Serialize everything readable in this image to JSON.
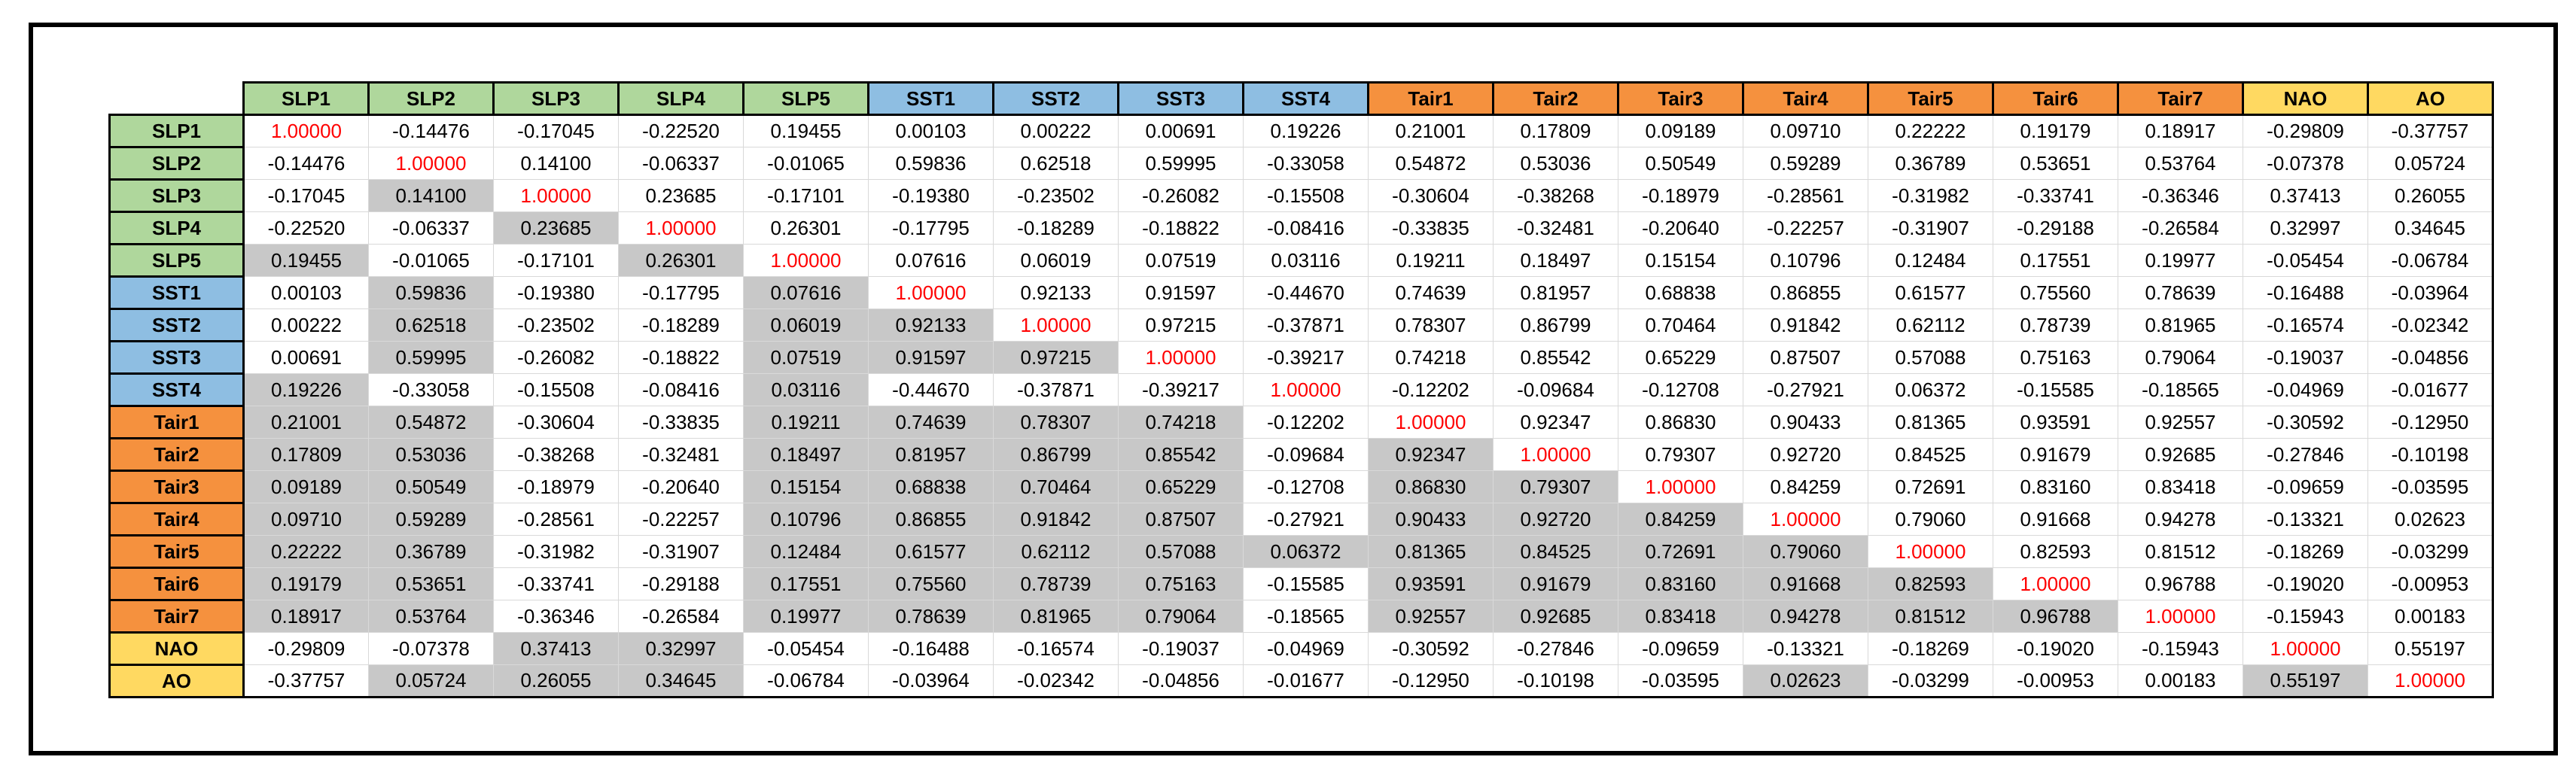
{
  "chart_data": {
    "type": "table",
    "table_kind": "correlation-matrix",
    "variables": [
      "SLP1",
      "SLP2",
      "SLP3",
      "SLP4",
      "SLP5",
      "SST1",
      "SST2",
      "SST3",
      "SST4",
      "Tair1",
      "Tair2",
      "Tair3",
      "Tair4",
      "Tair5",
      "Tair6",
      "Tair7",
      "NAO",
      "AO"
    ],
    "variable_groups": [
      "slp",
      "slp",
      "slp",
      "slp",
      "slp",
      "sst",
      "sst",
      "sst",
      "sst",
      "tair",
      "tair",
      "tair",
      "tair",
      "tair",
      "tair",
      "tair",
      "index",
      "index"
    ],
    "matrix": [
      [
        "1.00000",
        "-0.14476",
        "-0.17045",
        "-0.22520",
        "0.19455",
        "0.00103",
        "0.00222",
        "0.00691",
        "0.19226",
        "0.21001",
        "0.17809",
        "0.09189",
        "0.09710",
        "0.22222",
        "0.19179",
        "0.18917",
        "-0.29809",
        "-0.37757"
      ],
      [
        "-0.14476",
        "1.00000",
        "0.14100",
        "-0.06337",
        "-0.01065",
        "0.59836",
        "0.62518",
        "0.59995",
        "-0.33058",
        "0.54872",
        "0.53036",
        "0.50549",
        "0.59289",
        "0.36789",
        "0.53651",
        "0.53764",
        "-0.07378",
        "0.05724"
      ],
      [
        "-0.17045",
        "0.14100",
        "1.00000",
        "0.23685",
        "-0.17101",
        "-0.19380",
        "-0.23502",
        "-0.26082",
        "-0.15508",
        "-0.30604",
        "-0.38268",
        "-0.18979",
        "-0.28561",
        "-0.31982",
        "-0.33741",
        "-0.36346",
        "0.37413",
        "0.26055"
      ],
      [
        "-0.22520",
        "-0.06337",
        "0.23685",
        "1.00000",
        "0.26301",
        "-0.17795",
        "-0.18289",
        "-0.18822",
        "-0.08416",
        "-0.33835",
        "-0.32481",
        "-0.20640",
        "-0.22257",
        "-0.31907",
        "-0.29188",
        "-0.26584",
        "0.32997",
        "0.34645"
      ],
      [
        "0.19455",
        "-0.01065",
        "-0.17101",
        "0.26301",
        "1.00000",
        "0.07616",
        "0.06019",
        "0.07519",
        "0.03116",
        "0.19211",
        "0.18497",
        "0.15154",
        "0.10796",
        "0.12484",
        "0.17551",
        "0.19977",
        "-0.05454",
        "-0.06784"
      ],
      [
        "0.00103",
        "0.59836",
        "-0.19380",
        "-0.17795",
        "0.07616",
        "1.00000",
        "0.92133",
        "0.91597",
        "-0.44670",
        "0.74639",
        "0.81957",
        "0.68838",
        "0.86855",
        "0.61577",
        "0.75560",
        "0.78639",
        "-0.16488",
        "-0.03964"
      ],
      [
        "0.00222",
        "0.62518",
        "-0.23502",
        "-0.18289",
        "0.06019",
        "0.92133",
        "1.00000",
        "0.97215",
        "-0.37871",
        "0.78307",
        "0.86799",
        "0.70464",
        "0.91842",
        "0.62112",
        "0.78739",
        "0.81965",
        "-0.16574",
        "-0.02342"
      ],
      [
        "0.00691",
        "0.59995",
        "-0.26082",
        "-0.18822",
        "0.07519",
        "0.91597",
        "0.97215",
        "1.00000",
        "-0.39217",
        "0.74218",
        "0.85542",
        "0.65229",
        "0.87507",
        "0.57088",
        "0.75163",
        "0.79064",
        "-0.19037",
        "-0.04856"
      ],
      [
        "0.19226",
        "-0.33058",
        "-0.15508",
        "-0.08416",
        "0.03116",
        "-0.44670",
        "-0.37871",
        "-0.39217",
        "1.00000",
        "-0.12202",
        "-0.09684",
        "-0.12708",
        "-0.27921",
        "0.06372",
        "-0.15585",
        "-0.18565",
        "-0.04969",
        "-0.01677"
      ],
      [
        "0.21001",
        "0.54872",
        "-0.30604",
        "-0.33835",
        "0.19211",
        "0.74639",
        "0.78307",
        "0.74218",
        "-0.12202",
        "1.00000",
        "0.92347",
        "0.86830",
        "0.90433",
        "0.81365",
        "0.93591",
        "0.92557",
        "-0.30592",
        "-0.12950"
      ],
      [
        "0.17809",
        "0.53036",
        "-0.38268",
        "-0.32481",
        "0.18497",
        "0.81957",
        "0.86799",
        "0.85542",
        "-0.09684",
        "0.92347",
        "1.00000",
        "0.79307",
        "0.92720",
        "0.84525",
        "0.91679",
        "0.92685",
        "-0.27846",
        "-0.10198"
      ],
      [
        "0.09189",
        "0.50549",
        "-0.18979",
        "-0.20640",
        "0.15154",
        "0.68838",
        "0.70464",
        "0.65229",
        "-0.12708",
        "0.86830",
        "0.79307",
        "1.00000",
        "0.84259",
        "0.72691",
        "0.83160",
        "0.83418",
        "-0.09659",
        "-0.03595"
      ],
      [
        "0.09710",
        "0.59289",
        "-0.28561",
        "-0.22257",
        "0.10796",
        "0.86855",
        "0.91842",
        "0.87507",
        "-0.27921",
        "0.90433",
        "0.92720",
        "0.84259",
        "1.00000",
        "0.79060",
        "0.91668",
        "0.94278",
        "-0.13321",
        "0.02623"
      ],
      [
        "0.22222",
        "0.36789",
        "-0.31982",
        "-0.31907",
        "0.12484",
        "0.61577",
        "0.62112",
        "0.57088",
        "0.06372",
        "0.81365",
        "0.84525",
        "0.72691",
        "0.79060",
        "1.00000",
        "0.82593",
        "0.81512",
        "-0.18269",
        "-0.03299"
      ],
      [
        "0.19179",
        "0.53651",
        "-0.33741",
        "-0.29188",
        "0.17551",
        "0.75560",
        "0.78739",
        "0.75163",
        "-0.15585",
        "0.93591",
        "0.91679",
        "0.83160",
        "0.91668",
        "0.82593",
        "1.00000",
        "0.96788",
        "-0.19020",
        "-0.00953"
      ],
      [
        "0.18917",
        "0.53764",
        "-0.36346",
        "-0.26584",
        "0.19977",
        "0.78639",
        "0.81965",
        "0.79064",
        "-0.18565",
        "0.92557",
        "0.92685",
        "0.83418",
        "0.94278",
        "0.81512",
        "0.96788",
        "1.00000",
        "-0.15943",
        "0.00183"
      ],
      [
        "-0.29809",
        "-0.07378",
        "0.37413",
        "0.32997",
        "-0.05454",
        "-0.16488",
        "-0.16574",
        "-0.19037",
        "-0.04969",
        "-0.30592",
        "-0.27846",
        "-0.09659",
        "-0.13321",
        "-0.18269",
        "-0.19020",
        "-0.15943",
        "1.00000",
        "0.55197"
      ],
      [
        "-0.37757",
        "0.05724",
        "0.26055",
        "0.34645",
        "-0.06784",
        "-0.03964",
        "-0.02342",
        "-0.04856",
        "-0.01677",
        "-0.12950",
        "-0.10198",
        "-0.03595",
        "0.02623",
        "-0.03299",
        "-0.00953",
        "0.00183",
        "0.55197",
        "1.00000"
      ]
    ],
    "shaded_cols_by_row": [
      [],
      [],
      [
        1
      ],
      [
        2
      ],
      [
        0,
        3
      ],
      [
        1,
        4
      ],
      [
        1,
        4,
        5
      ],
      [
        1,
        4,
        5,
        6
      ],
      [
        0,
        4
      ],
      [
        0,
        1,
        4,
        5,
        6,
        7
      ],
      [
        0,
        1,
        4,
        5,
        6,
        7,
        9
      ],
      [
        0,
        1,
        4,
        5,
        6,
        7,
        9,
        10
      ],
      [
        0,
        1,
        4,
        5,
        6,
        7,
        9,
        10,
        11
      ],
      [
        0,
        1,
        4,
        5,
        6,
        7,
        8,
        9,
        10,
        11,
        12
      ],
      [
        0,
        1,
        4,
        5,
        6,
        7,
        9,
        10,
        11,
        12,
        13
      ],
      [
        0,
        1,
        4,
        5,
        6,
        7,
        9,
        10,
        11,
        12,
        13,
        14
      ],
      [
        2,
        3
      ],
      [
        1,
        2,
        3,
        12,
        16
      ]
    ],
    "colors": {
      "slp_header": "#AFD79C",
      "sst_header": "#8EBEE2",
      "tair_header": "#F5913E",
      "index_header": "#FFD961",
      "shaded_cell": "#C8C8C8",
      "diagonal_text": "#FF0000",
      "cell_text": "#000000"
    }
  }
}
